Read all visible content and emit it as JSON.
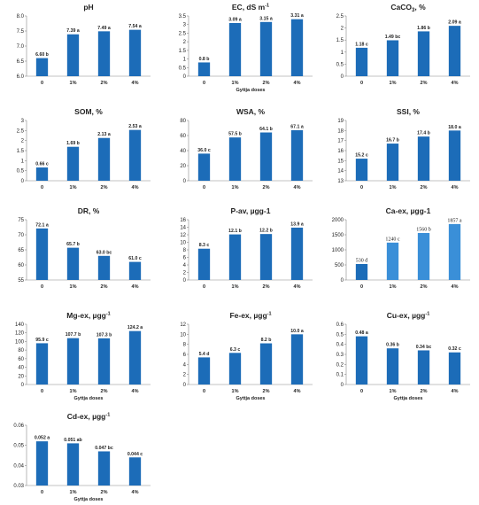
{
  "chart_data": [
    {
      "type": "bar",
      "title": "pH",
      "xlabel": "",
      "categories": [
        "0",
        "1%",
        "2%",
        "4%"
      ],
      "values": [
        6.6,
        7.39,
        7.49,
        7.54
      ],
      "data_labels": [
        "6.60 b",
        "7.39 a",
        "7.49 a",
        "7.54 a"
      ],
      "ylim": [
        6.0,
        8.0
      ],
      "yticks": [
        "6.0",
        "6.5",
        "7.0",
        "7.5",
        "8.0"
      ],
      "grid": false,
      "colors": {
        "bar": "#1c6cb8"
      }
    },
    {
      "type": "bar",
      "title": "EC, dS m",
      "title_sup": "-1",
      "xlabel": "Gyttja doses",
      "categories": [
        "0",
        "1%",
        "2%",
        "4%"
      ],
      "values": [
        0.8,
        3.09,
        3.15,
        3.31
      ],
      "data_labels": [
        "0.8 b",
        "3.09 a",
        "3.15 a",
        "3.31 a"
      ],
      "ylim": [
        0,
        3.5
      ],
      "yticks": [
        "0",
        "0.5",
        "1",
        "1.5",
        "2",
        "2.5",
        "3",
        "3.5"
      ],
      "grid": false,
      "colors": {
        "bar": "#1c6cb8"
      }
    },
    {
      "type": "bar",
      "title": "CaCO",
      "title_sub": "3",
      "title_tail": ", %",
      "xlabel": "",
      "categories": [
        "0",
        "1%",
        "2%",
        "4%"
      ],
      "values": [
        1.18,
        1.49,
        1.86,
        2.09
      ],
      "data_labels": [
        "1.18 c",
        "1.49 bc",
        "1.86 b",
        "2.09 a"
      ],
      "ylim": [
        0,
        2.5
      ],
      "yticks": [
        "0",
        "0.5",
        "1",
        "1.5",
        "2",
        "2.5"
      ],
      "grid": false,
      "colors": {
        "bar": "#1c6cb8"
      }
    },
    {
      "type": "bar",
      "title": "SOM, %",
      "xlabel": "",
      "categories": [
        "0",
        "1%",
        "2%",
        "4%"
      ],
      "values": [
        0.66,
        1.69,
        2.13,
        2.53
      ],
      "data_labels": [
        "0.66 c",
        "1.69 b",
        "2.13 a",
        "2.53 a"
      ],
      "ylim": [
        0,
        3
      ],
      "yticks": [
        "0",
        "0.5",
        "1",
        "1.5",
        "2",
        "2.5",
        "3"
      ],
      "grid": false,
      "colors": {
        "bar": "#1c6cb8"
      }
    },
    {
      "type": "bar",
      "title": "WSA, %",
      "xlabel": "",
      "categories": [
        "0",
        "1%",
        "2%",
        "4%"
      ],
      "values": [
        36.0,
        57.5,
        64.1,
        67.1
      ],
      "data_labels": [
        "36.0 c",
        "57.5 b",
        "64.1 b",
        "67.1 a"
      ],
      "ylim": [
        0,
        80
      ],
      "yticks": [
        "0",
        "20",
        "40",
        "60",
        "80"
      ],
      "grid": false,
      "colors": {
        "bar": "#1c6cb8"
      }
    },
    {
      "type": "bar",
      "title": "SSI, %",
      "xlabel": "",
      "categories": [
        "0",
        "1%",
        "2%",
        "4%"
      ],
      "values": [
        15.2,
        16.7,
        17.4,
        18.0
      ],
      "data_labels": [
        "15.2 c",
        "16.7 b",
        "17.4 b",
        "18.0 a"
      ],
      "ylim": [
        13,
        19
      ],
      "yticks": [
        "13",
        "14",
        "15",
        "16",
        "17",
        "18",
        "19"
      ],
      "grid": false,
      "colors": {
        "bar": "#1c6cb8"
      }
    },
    {
      "type": "bar",
      "title": "DR, %",
      "xlabel": "",
      "categories": [
        "0",
        "1%",
        "2%",
        "4%"
      ],
      "values": [
        72.1,
        65.7,
        63.0,
        61.0
      ],
      "data_labels": [
        "72.1 a",
        "65.7 b",
        "63.0 bc",
        "61.0 c"
      ],
      "ylim": [
        55,
        75
      ],
      "yticks": [
        "55",
        "60",
        "65",
        "70",
        "75"
      ],
      "grid": false,
      "colors": {
        "bar": "#1c6cb8"
      }
    },
    {
      "type": "bar",
      "title": "P-av, µgg-1",
      "xlabel": "",
      "categories": [
        "0",
        "1%",
        "2%",
        "4%"
      ],
      "values": [
        8.3,
        12.1,
        12.2,
        13.9
      ],
      "data_labels": [
        "8.3 c",
        "12.1 b",
        "12.2 b",
        "13.9 a"
      ],
      "ylim": [
        0,
        16
      ],
      "yticks": [
        "0",
        "2",
        "4",
        "6",
        "8",
        "10",
        "12",
        "14",
        "16"
      ],
      "grid": false,
      "colors": {
        "bar": "#1c6cb8"
      }
    },
    {
      "type": "bar",
      "title": "Ca-ex, µgg-1",
      "xlabel": "",
      "categories": [
        "0",
        "1%",
        "2%",
        "4%"
      ],
      "values": [
        530,
        1240,
        1560,
        1857
      ],
      "data_labels": [
        "530 d",
        "1240 c",
        "1560 b",
        "1857 a"
      ],
      "ylim": [
        0,
        2000
      ],
      "yticks": [
        "0",
        "500",
        "1000",
        "1500",
        "2000"
      ],
      "grid": false,
      "colors": {
        "bar": "#1c6cb8",
        "bar_alt": "#3a8fd8"
      }
    },
    {
      "type": "bar",
      "title": "Mg-ex, µgg",
      "title_sup": "-1",
      "xlabel": "Gyttja doses",
      "categories": [
        "0",
        "1%",
        "2%",
        "4%"
      ],
      "values": [
        95.9,
        107.7,
        107.3,
        124.2
      ],
      "data_labels": [
        "95.9 c",
        "107.7 b",
        "107.3 b",
        "124.2 a"
      ],
      "ylim": [
        0,
        140
      ],
      "yticks": [
        "0",
        "20",
        "40",
        "60",
        "80",
        "100",
        "120",
        "140"
      ],
      "grid": false,
      "colors": {
        "bar": "#1c6cb8"
      }
    },
    {
      "type": "bar",
      "title": "Fe-ex, µgg",
      "title_sup": "-1",
      "xlabel": "Gyttja doses",
      "categories": [
        "0",
        "1%",
        "2%",
        "4%"
      ],
      "values": [
        5.4,
        6.3,
        8.2,
        10.0
      ],
      "data_labels": [
        "5.4 d",
        "6.3 c",
        "8.2 b",
        "10.0 a"
      ],
      "ylim": [
        0,
        12
      ],
      "yticks": [
        "0",
        "2",
        "4",
        "6",
        "8",
        "10",
        "12"
      ],
      "grid": false,
      "colors": {
        "bar": "#1c6cb8"
      }
    },
    {
      "type": "bar",
      "title": "Cu-ex, µgg",
      "title_sup": "-1",
      "xlabel": "Gyttja doses",
      "categories": [
        "0",
        "1%",
        "2%",
        "4%"
      ],
      "values": [
        0.48,
        0.36,
        0.34,
        0.32
      ],
      "data_labels": [
        "0.48 a",
        "0.36 b",
        "0.34 bc",
        "0.32 c"
      ],
      "ylim": [
        0,
        0.6
      ],
      "yticks": [
        "0",
        "0.1",
        "0.2",
        "0.3",
        "0.4",
        "0.5",
        "0.6"
      ],
      "grid": false,
      "colors": {
        "bar": "#1c6cb8"
      }
    },
    {
      "type": "bar",
      "title": "Cd-ex, µgg",
      "title_sup": "-1",
      "xlabel": "Gyttja doses",
      "categories": [
        "0",
        "1%",
        "2%",
        "4%"
      ],
      "values": [
        0.052,
        0.051,
        0.047,
        0.044
      ],
      "data_labels": [
        "0.052 a",
        "0.051 ab",
        "0.047 bc",
        "0.044 c"
      ],
      "ylim": [
        0.03,
        0.06
      ],
      "yticks": [
        "0.03",
        "0.04",
        "0.05",
        "0.06"
      ],
      "grid": false,
      "colors": {
        "bar": "#1c6cb8"
      }
    }
  ]
}
